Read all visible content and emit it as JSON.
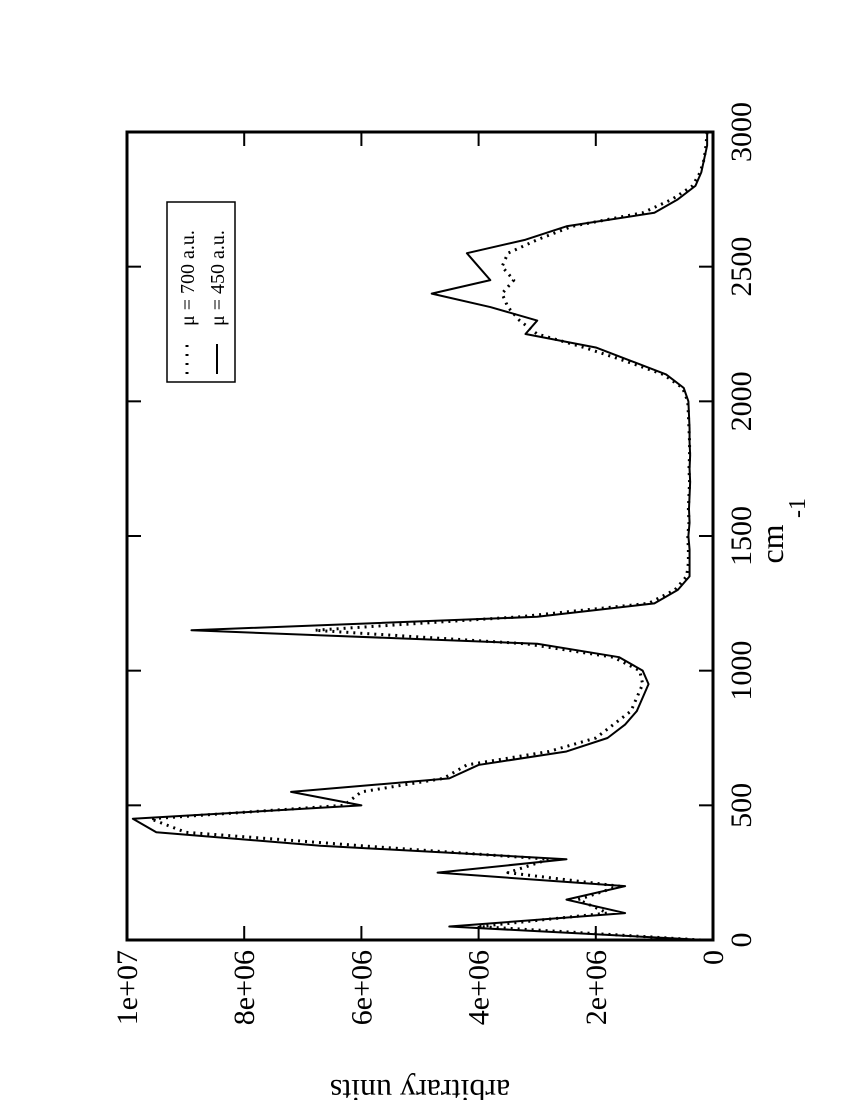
{
  "chart_data": {
    "type": "line",
    "x_label": "cm",
    "x_label_superscript": "-1",
    "y_label": "arbitrary units",
    "x": [
      0,
      50,
      100,
      150,
      200,
      250,
      300,
      350,
      400,
      450,
      500,
      550,
      600,
      650,
      700,
      750,
      800,
      850,
      900,
      950,
      1000,
      1050,
      1100,
      1150,
      1200,
      1250,
      1300,
      1350,
      1400,
      1450,
      1500,
      1550,
      1600,
      1650,
      1700,
      1750,
      1800,
      1850,
      1900,
      1950,
      2000,
      2050,
      2100,
      2150,
      2200,
      2250,
      2300,
      2350,
      2400,
      2450,
      2500,
      2550,
      2600,
      2650,
      2700,
      2750,
      2800,
      2850,
      2900,
      2950,
      3000
    ],
    "series": [
      {
        "name": "μ = 700 a.u.",
        "color": "#000000",
        "style": "dotted",
        "values": [
          200000,
          4000000,
          1800000,
          2300000,
          1600000,
          3500000,
          2800000,
          6000000,
          9000000,
          9600000,
          6300000,
          6000000,
          4600000,
          4200000,
          2800000,
          2000000,
          1700000,
          1400000,
          1300000,
          1200000,
          1250000,
          1700000,
          3200000,
          6800000,
          3300000,
          1100000,
          650000,
          450000,
          420000,
          420000,
          430000,
          410000,
          420000,
          410000,
          400000,
          410000,
          400000,
          400000,
          410000,
          420000,
          430000,
          520000,
          850000,
          1500000,
          2200000,
          3000000,
          3300000,
          3500000,
          3600000,
          3400000,
          3600000,
          3500000,
          3000000,
          2400000,
          1200000,
          700000,
          350000,
          220000,
          150000,
          120000,
          100000
        ]
      },
      {
        "name": "μ = 450 a.u.",
        "color": "#000000",
        "style": "solid",
        "values": [
          150000,
          4500000,
          1500000,
          2500000,
          1500000,
          4700000,
          2500000,
          6700000,
          9500000,
          9900000,
          6000000,
          7200000,
          4500000,
          4000000,
          2500000,
          1800000,
          1500000,
          1300000,
          1200000,
          1100000,
          1200000,
          1600000,
          3000000,
          8900000,
          3000000,
          1000000,
          600000,
          400000,
          400000,
          400000,
          420000,
          400000,
          410000,
          400000,
          390000,
          400000,
          390000,
          400000,
          400000,
          410000,
          420000,
          500000,
          800000,
          1400000,
          2000000,
          3200000,
          3000000,
          3800000,
          4800000,
          3800000,
          4000000,
          4200000,
          3200000,
          2500000,
          1000000,
          600000,
          300000,
          200000,
          150000,
          100000,
          100000
        ]
      }
    ],
    "xlim": [
      0,
      3000
    ],
    "xticks": [
      0,
      500,
      1000,
      1500,
      2000,
      2500,
      3000
    ],
    "ylim": [
      0,
      10000000
    ],
    "yticks": [
      0,
      {
        "value": 2000000,
        "label": "2e+06"
      },
      {
        "value": 4000000,
        "label": "4e+06"
      },
      {
        "value": 6000000,
        "label": "6e+06"
      },
      {
        "value": 8000000,
        "label": "8e+06"
      },
      {
        "value": 10000000,
        "label": "1e+07"
      }
    ],
    "legend": "upper right",
    "rotation": -90
  }
}
